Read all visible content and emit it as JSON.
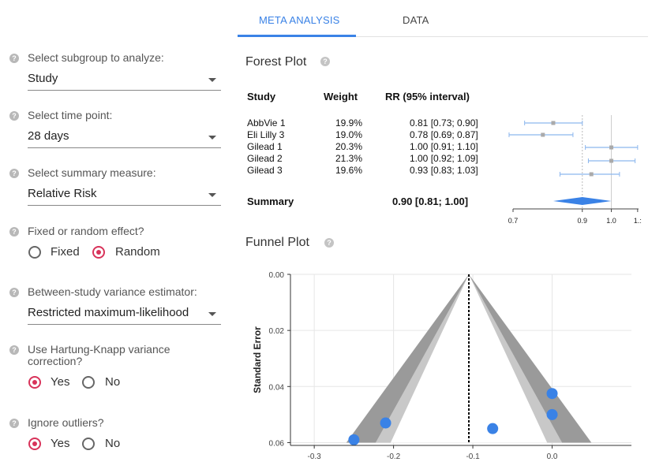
{
  "tabs": [
    {
      "label": "META ANALYSIS",
      "active": true
    },
    {
      "label": "DATA",
      "active": false
    }
  ],
  "controls": {
    "subgroup": {
      "label": "Select subgroup to analyze:",
      "value": "Study"
    },
    "time_point": {
      "label": "Select time point:",
      "value": "28 days"
    },
    "summary_measure": {
      "label": "Select summary measure:",
      "value": "Relative Risk"
    },
    "effect": {
      "label": "Fixed or random effect?",
      "options": [
        "Fixed",
        "Random"
      ],
      "selected": "Random"
    },
    "variance_estimator": {
      "label": "Between-study variance estimator:",
      "value": "Restricted maximum-likelihood"
    },
    "hartung_knapp": {
      "label": "Use Hartung-Knapp variance correction?",
      "options": [
        "Yes",
        "No"
      ],
      "selected": "Yes"
    },
    "outliers": {
      "label": "Ignore outliers?",
      "options": [
        "Yes",
        "No"
      ],
      "selected": "Yes"
    },
    "help_glyph": "?"
  },
  "forest": {
    "title": "Forest Plot",
    "headers": {
      "study": "Study",
      "weight": "Weight",
      "rr": "RR (95% interval)"
    },
    "rows": [
      {
        "study": "AbbVie 1",
        "weight": "19.9%",
        "rr": "0.81 [0.73; 0.90]"
      },
      {
        "study": "Eli Lilly 3",
        "weight": "19.0%",
        "rr": "0.78 [0.69; 0.87]"
      },
      {
        "study": "Gilead 1",
        "weight": "20.3%",
        "rr": "1.00 [0.91; 1.10]"
      },
      {
        "study": "Gilead 2",
        "weight": "21.3%",
        "rr": "1.00 [0.92; 1.09]"
      },
      {
        "study": "Gilead 3",
        "weight": "19.6%",
        "rr": "0.93 [0.83; 1.03]"
      }
    ],
    "summary": {
      "label": "Summary",
      "rr": "0.90 [0.81; 1.00]"
    }
  },
  "chart_data": [
    {
      "type": "scatter",
      "title": "Forest Plot",
      "x": [
        0.81,
        0.78,
        1.0,
        1.0,
        0.93
      ],
      "ci_low": [
        0.73,
        0.69,
        0.91,
        0.92,
        0.83
      ],
      "ci_high": [
        0.9,
        0.87,
        1.1,
        1.09,
        1.03
      ],
      "summary": {
        "estimate": 0.9,
        "low": 0.81,
        "high": 1.0
      },
      "reference_line": 1.0,
      "x_ticks": [
        "0.7",
        "0.9",
        "1.0",
        "1.:"
      ],
      "log_scale": true,
      "grid": false
    },
    {
      "type": "scatter",
      "title": "Funnel Plot",
      "xlabel": "",
      "ylabel": "Standard Error",
      "x_ticks": [
        "-0.3",
        "-0.2",
        "-0.1",
        "0.0"
      ],
      "y_ticks": [
        "0.00",
        "0.02",
        "0.04",
        "0.06"
      ],
      "xlim": [
        -0.33,
        0.1
      ],
      "ylim_reversed": [
        0.0,
        0.061
      ],
      "center": -0.105,
      "points": [
        {
          "x": -0.21,
          "y": 0.053
        },
        {
          "x": -0.25,
          "y": 0.059
        },
        {
          "x": 0.0,
          "y": 0.0425
        },
        {
          "x": 0.0,
          "y": 0.05
        },
        {
          "x": -0.075,
          "y": 0.055
        }
      ],
      "grid": true,
      "colors": {
        "points": "#3a82e6",
        "funnel_outer": "#9a9a9a",
        "funnel_inner": "#c8c8c8"
      }
    }
  ],
  "colors": {
    "accent": "#3a82e6",
    "radio_selected": "#d8335a"
  }
}
